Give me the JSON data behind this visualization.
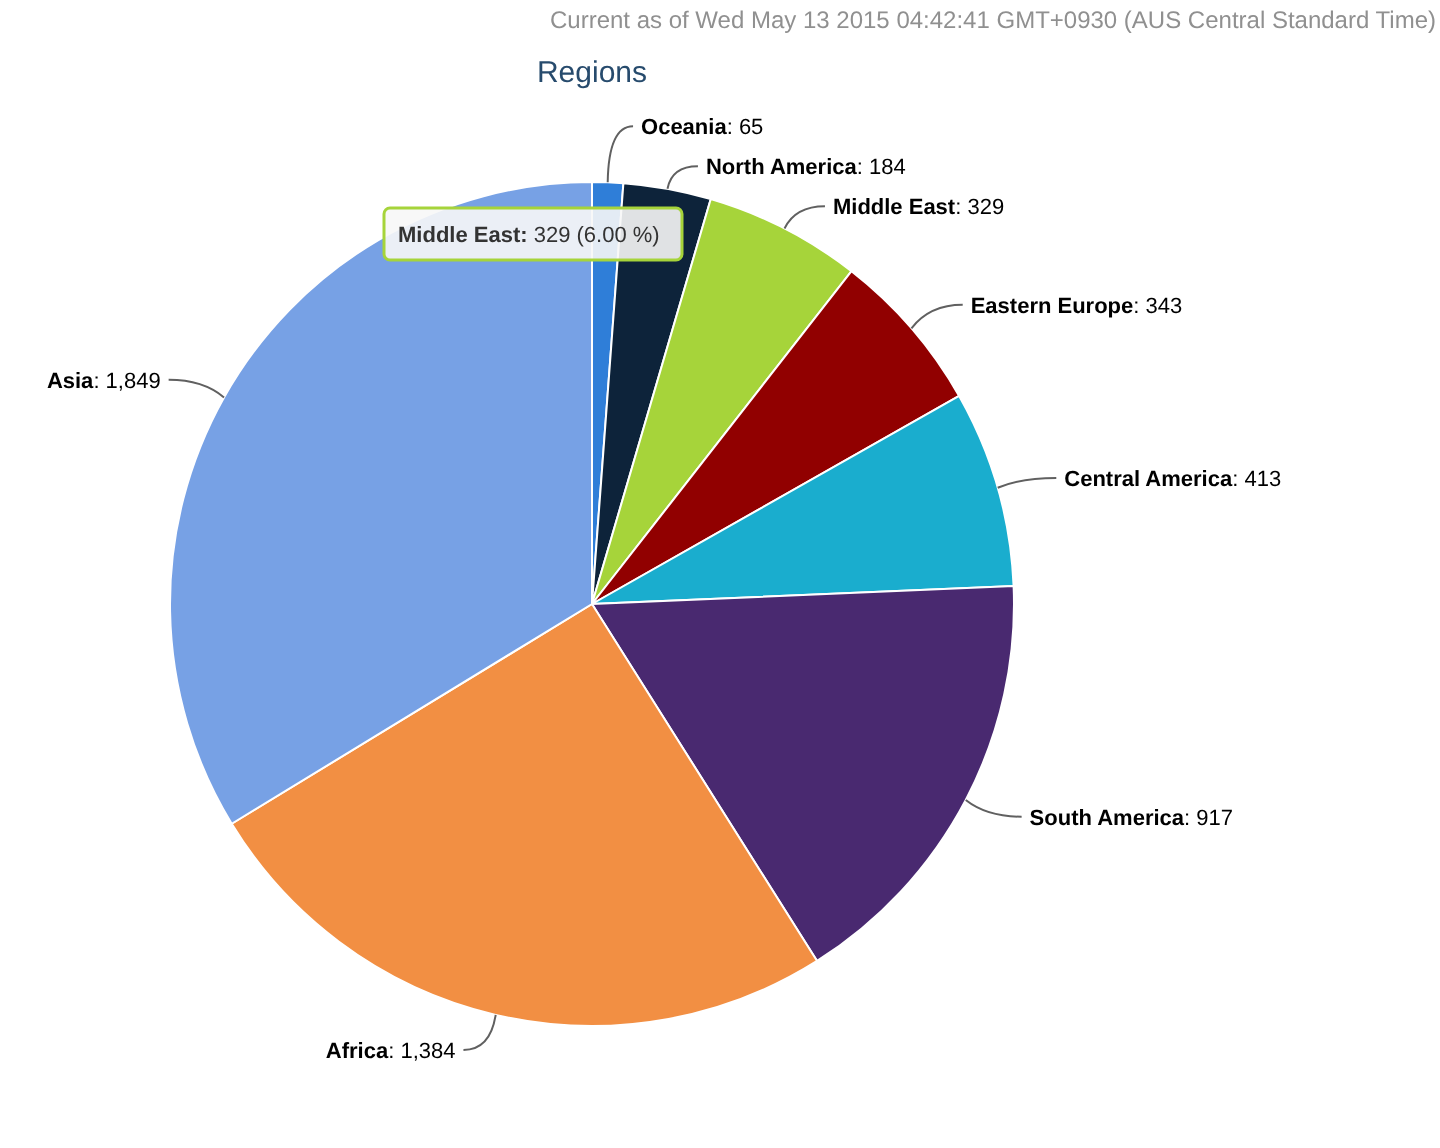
{
  "chart_data": {
    "type": "pie",
    "title": "Regions",
    "categories": [
      "Oceania",
      "North America",
      "Middle East",
      "Eastern Europe",
      "Central America",
      "South America",
      "Africa",
      "Asia"
    ],
    "values": [
      65,
      184,
      329,
      343,
      413,
      917,
      1384,
      1849
    ],
    "value_labels": [
      ": 65",
      ": 184",
      ": 329",
      ": 343",
      ": 413",
      ": 917",
      ": 1,384",
      ": 1,849"
    ],
    "colors": [
      "#2f7ed8",
      "#0d233a",
      "#a6d43a",
      "#910000",
      "#1aadce",
      "#492970",
      "#f28f43",
      "#77a1e5"
    ],
    "annotations": [
      "Current as of Wed May 13 2015 04:42:41 GMT+0930 (AUS Central Standard Time)",
      "Middle East: 329 (6.00 %)"
    ],
    "legend": false
  }
}
